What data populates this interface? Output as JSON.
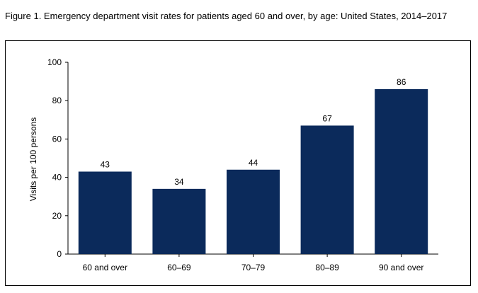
{
  "figure": {
    "title": "Figure 1. Emergency department visit rates for patients aged 60 and over, by age: United States, 2014–2017"
  },
  "chart_data": {
    "type": "bar",
    "title": "Figure 1. Emergency department visit rates for patients aged 60 and over, by age: United States, 2014–2017",
    "xlabel": "",
    "ylabel": "Visits per 100 persons",
    "categories": [
      "60 and over",
      "60–69",
      "70–79",
      "80–89",
      "90 and over"
    ],
    "values": [
      43,
      34,
      44,
      67,
      86
    ],
    "data_labels": [
      "43",
      "34",
      "44",
      "67",
      "86"
    ],
    "ylim": [
      0,
      100
    ],
    "yticks": [
      0,
      20,
      40,
      60,
      80,
      100
    ],
    "grid": false,
    "bar_color": "#0b2a5b"
  }
}
